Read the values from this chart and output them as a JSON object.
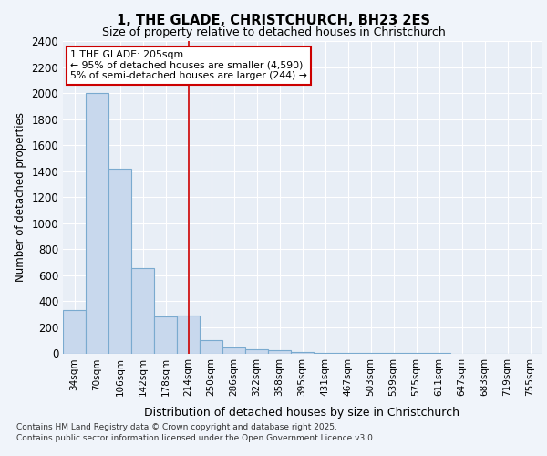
{
  "title1": "1, THE GLADE, CHRISTCHURCH, BH23 2ES",
  "title2": "Size of property relative to detached houses in Christchurch",
  "xlabel": "Distribution of detached houses by size in Christchurch",
  "ylabel": "Number of detached properties",
  "categories": [
    "34sqm",
    "70sqm",
    "106sqm",
    "142sqm",
    "178sqm",
    "214sqm",
    "250sqm",
    "286sqm",
    "322sqm",
    "358sqm",
    "395sqm",
    "431sqm",
    "467sqm",
    "503sqm",
    "539sqm",
    "575sqm",
    "611sqm",
    "647sqm",
    "683sqm",
    "719sqm",
    "755sqm"
  ],
  "values": [
    330,
    2000,
    1420,
    655,
    285,
    290,
    105,
    48,
    35,
    25,
    10,
    3,
    2,
    1,
    1,
    1,
    1,
    0,
    0,
    0,
    0
  ],
  "bar_color": "#c8d8ed",
  "bar_edgecolor": "#7aaacf",
  "vline_x_index": 5,
  "vline_color": "#cc0000",
  "ylim": [
    0,
    2400
  ],
  "yticks": [
    0,
    200,
    400,
    600,
    800,
    1000,
    1200,
    1400,
    1600,
    1800,
    2000,
    2200,
    2400
  ],
  "annotation_title": "1 THE GLADE: 205sqm",
  "annotation_line1": "← 95% of detached houses are smaller (4,590)",
  "annotation_line2": "5% of semi-detached houses are larger (244) →",
  "annotation_box_facecolor": "#ffffff",
  "annotation_box_edgecolor": "#cc0000",
  "footnote1": "Contains HM Land Registry data © Crown copyright and database right 2025.",
  "footnote2": "Contains public sector information licensed under the Open Government Licence v3.0.",
  "fig_bg_color": "#f0f4fa",
  "plot_bg_color": "#e8eef6",
  "grid_color": "#ffffff"
}
